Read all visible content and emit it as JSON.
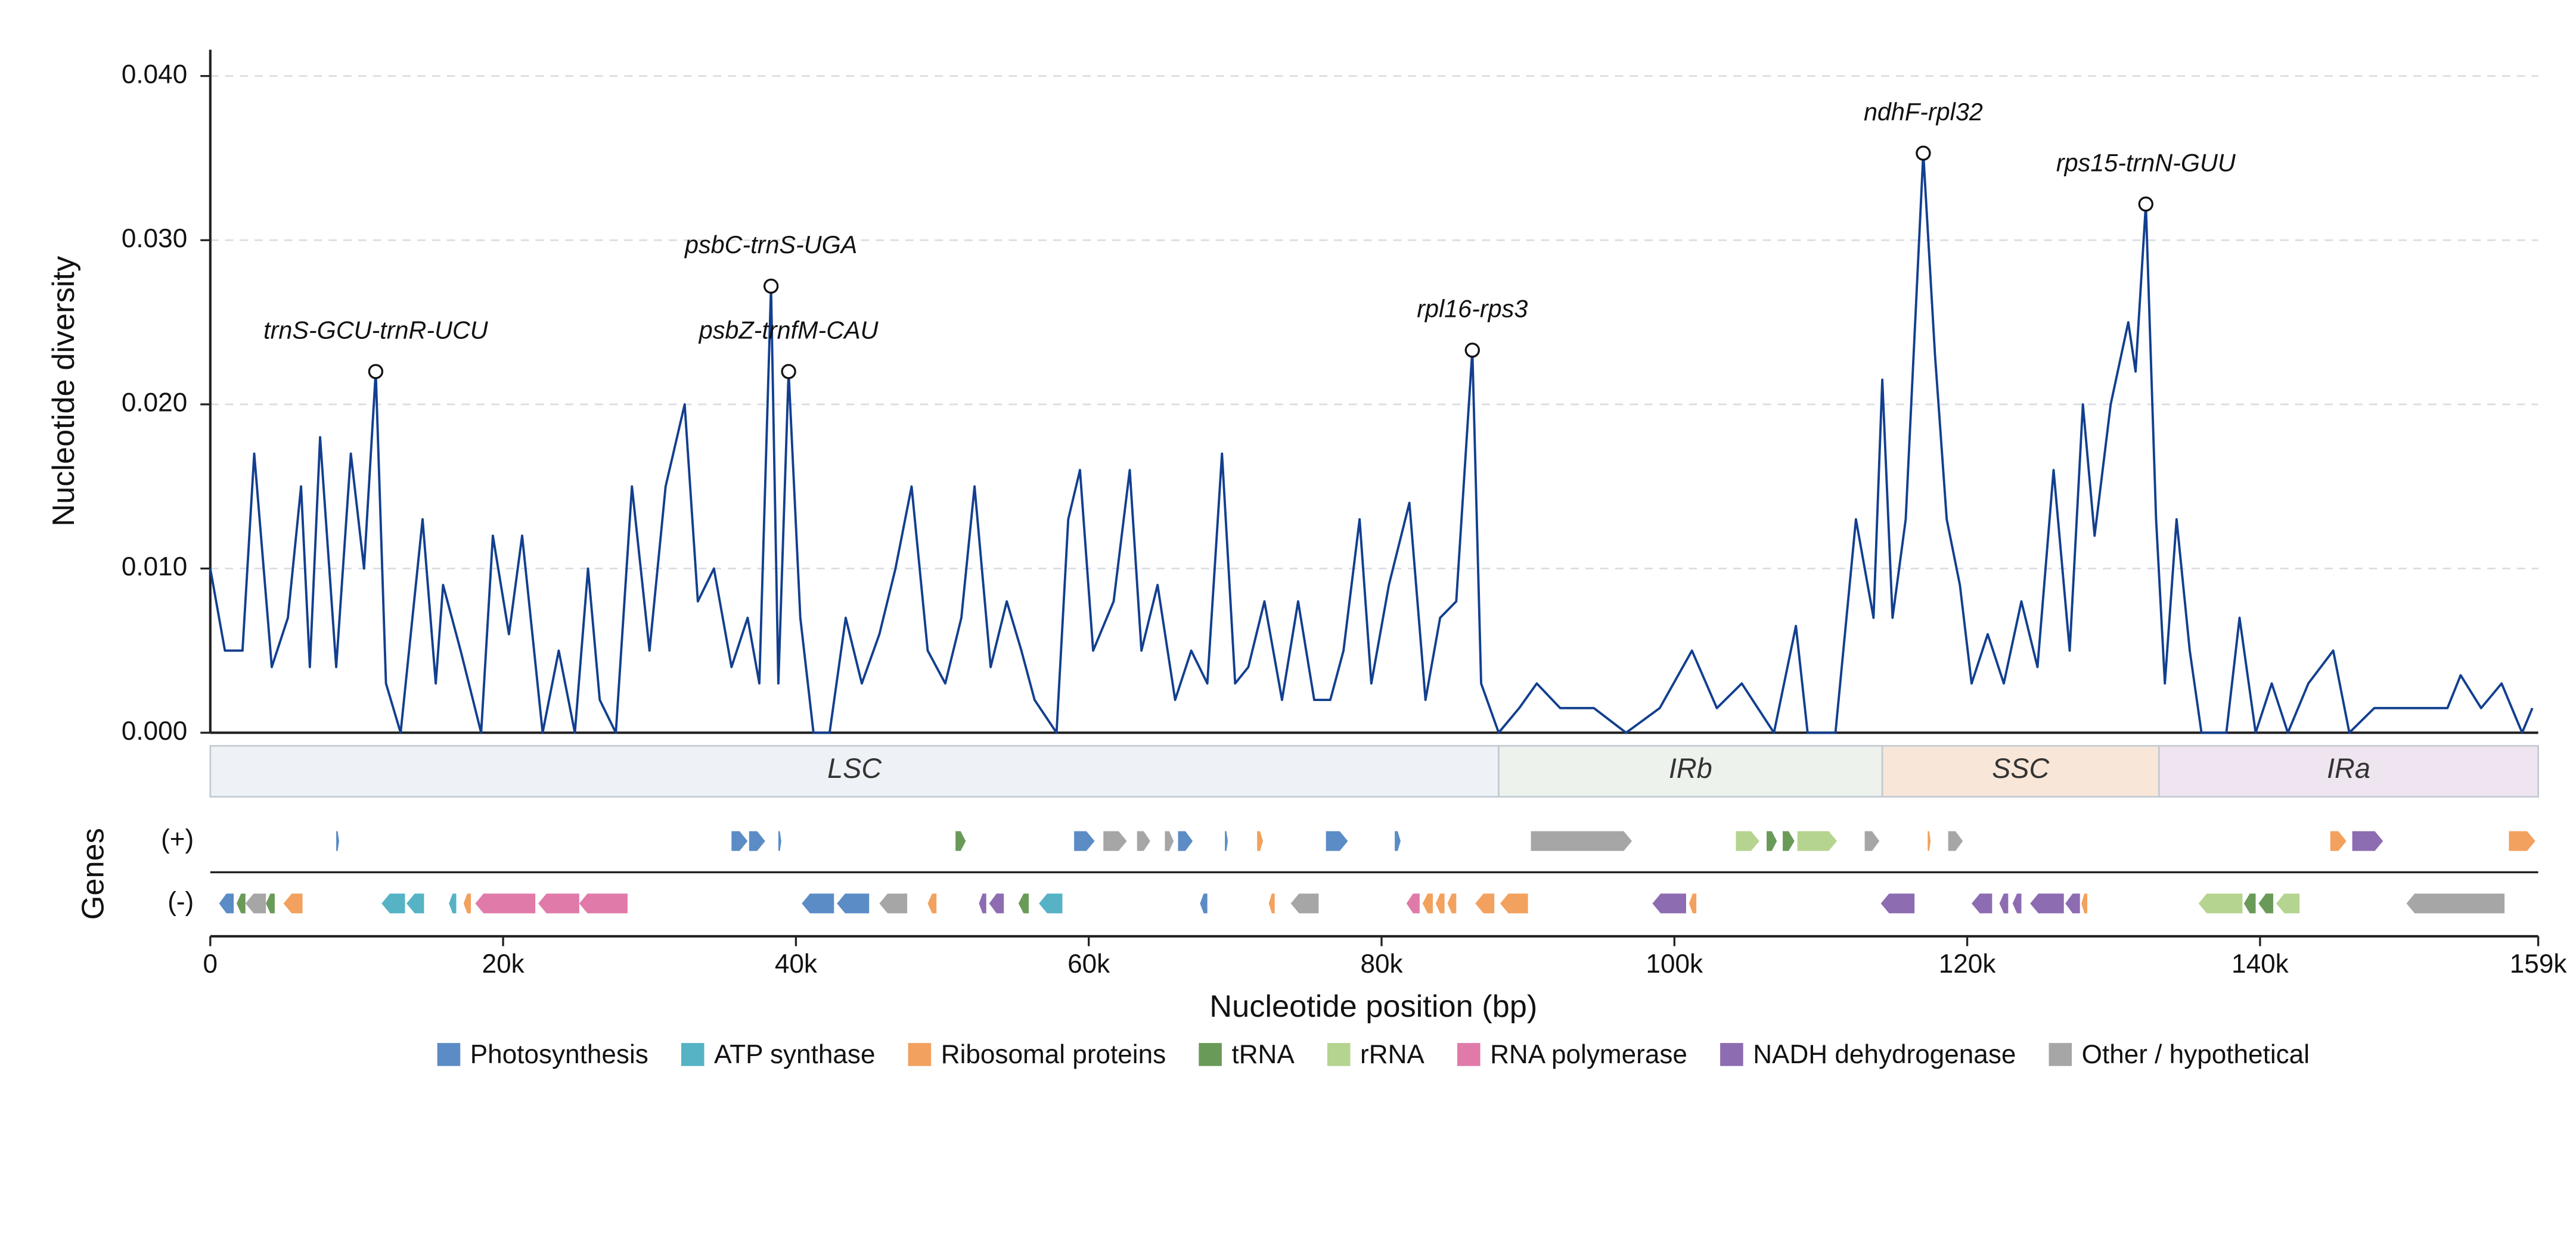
{
  "chart_data": {
    "type": "line",
    "ylabel": "Nucleotide diversity",
    "xlabel": "Nucleotide position (bp)",
    "color": "#123f8f",
    "grid": true,
    "xlim": [
      0,
      159000
    ],
    "ylim": [
      0,
      0.0416
    ],
    "xticks": [
      0,
      {
        "value": 20000,
        "label": "20k"
      },
      {
        "value": 40000,
        "label": "40k"
      },
      {
        "value": 60000,
        "label": "60k"
      },
      {
        "value": 80000,
        "label": "80k"
      },
      {
        "value": 100000,
        "label": "100k"
      },
      {
        "value": 120000,
        "label": "120k"
      },
      {
        "value": 140000,
        "label": "140k"
      },
      {
        "value": 159000,
        "label": "159k"
      }
    ],
    "yticks": [
      {
        "value": 0,
        "label": "0.000"
      },
      {
        "value": 0.01,
        "label": "0.010"
      },
      {
        "value": 0.02,
        "label": "0.020"
      },
      {
        "value": 0.03,
        "label": "0.030"
      },
      {
        "value": 0.04,
        "label": "0.040"
      }
    ],
    "x": [
      0,
      1000,
      2200,
      3000,
      4200,
      5300,
      6200,
      6800,
      7500,
      8600,
      9600,
      10500,
      11300,
      12000,
      13000,
      14500,
      15400,
      15900,
      17100,
      18500,
      19300,
      20400,
      21300,
      22700,
      23800,
      24900,
      25800,
      26600,
      27700,
      28800,
      30000,
      31100,
      32400,
      33300,
      34400,
      35600,
      36700,
      37500,
      38300,
      38800,
      39500,
      40300,
      41200,
      42300,
      43400,
      44500,
      45700,
      46800,
      47900,
      49000,
      50200,
      51300,
      52200,
      53300,
      54400,
      55400,
      56300,
      57800,
      58600,
      59400,
      60300,
      61700,
      62800,
      63600,
      64700,
      65900,
      67000,
      68100,
      69100,
      70000,
      70900,
      72000,
      73200,
      74300,
      75400,
      76500,
      77400,
      78500,
      79300,
      80500,
      81900,
      83000,
      84000,
      85100,
      86200,
      86800,
      88000,
      89400,
      90600,
      92200,
      94500,
      96700,
      99000,
      101200,
      102900,
      104600,
      106800,
      108300,
      109100,
      111000,
      112400,
      113600,
      114200,
      114900,
      115800,
      117000,
      117800,
      118600,
      119500,
      120300,
      121400,
      122500,
      123700,
      124800,
      125900,
      127000,
      127900,
      128700,
      129800,
      131000,
      131500,
      132200,
      132900,
      133500,
      134300,
      135200,
      136000,
      137700,
      138600,
      139700,
      140800,
      141900,
      143300,
      145000,
      146100,
      147800,
      149500,
      151100,
      152800,
      153700,
      155100,
      156500,
      157900,
      158600
    ],
    "values": [
      0.01,
      0.005,
      0.005,
      0.017,
      0.004,
      0.007,
      0.015,
      0.004,
      0.018,
      0.004,
      0.017,
      0.01,
      0.022,
      0.003,
      0.0,
      0.013,
      0.003,
      0.009,
      0.005,
      0.0,
      0.012,
      0.006,
      0.012,
      0.0,
      0.005,
      0.0,
      0.01,
      0.002,
      0.0,
      0.015,
      0.005,
      0.015,
      0.02,
      0.008,
      0.01,
      0.004,
      0.007,
      0.003,
      0.0272,
      0.003,
      0.022,
      0.007,
      0.0,
      0.0,
      0.007,
      0.003,
      0.006,
      0.01,
      0.015,
      0.005,
      0.003,
      0.007,
      0.015,
      0.004,
      0.008,
      0.005,
      0.002,
      0.0,
      0.013,
      0.016,
      0.005,
      0.008,
      0.016,
      0.005,
      0.009,
      0.002,
      0.005,
      0.003,
      0.017,
      0.003,
      0.004,
      0.008,
      0.002,
      0.008,
      0.002,
      0.002,
      0.005,
      0.013,
      0.003,
      0.009,
      0.014,
      0.002,
      0.007,
      0.008,
      0.0233,
      0.003,
      0.0,
      0.0015,
      0.003,
      0.0015,
      0.0015,
      0.0,
      0.0015,
      0.005,
      0.0015,
      0.003,
      0.0,
      0.0065,
      0.0,
      0.0,
      0.013,
      0.007,
      0.0215,
      0.007,
      0.013,
      0.0353,
      0.023,
      0.013,
      0.009,
      0.003,
      0.006,
      0.003,
      0.008,
      0.004,
      0.016,
      0.005,
      0.02,
      0.012,
      0.02,
      0.025,
      0.022,
      0.0322,
      0.013,
      0.003,
      0.013,
      0.005,
      0.0,
      0.0,
      0.007,
      0.0,
      0.003,
      0.0,
      0.003,
      0.005,
      0.0,
      0.0015,
      0.0015,
      0.0015,
      0.0015,
      0.0035,
      0.0015,
      0.003,
      0.0,
      0.0015
    ],
    "annotations": [
      {
        "text": "trnS-GCU-trnR-UCU",
        "x": 11300,
        "y": 0.022
      },
      {
        "text": "psbC-trnS-UGA",
        "x": 38300,
        "y": 0.0272
      },
      {
        "text": "psbZ-trnfM-CAU",
        "x": 39500,
        "y": 0.022
      },
      {
        "text": "rpl16-rps3",
        "x": 86200,
        "y": 0.0233
      },
      {
        "text": "ndhF-rpl32",
        "x": 117000,
        "y": 0.0353
      },
      {
        "text": "rps15-trnN-GUU",
        "x": 132200,
        "y": 0.0322
      }
    ],
    "regions": [
      {
        "name": "LSC",
        "start": 0,
        "end": 88000,
        "color": "#eef2f6"
      },
      {
        "name": "IRb",
        "start": 88000,
        "end": 114200,
        "color": "#edf3ec"
      },
      {
        "name": "SSC",
        "start": 114200,
        "end": 133100,
        "color": "#f8e7d9"
      },
      {
        "name": "IRa",
        "start": 133100,
        "end": 159000,
        "color": "#efe5f0"
      }
    ],
    "gene_track": {
      "label": "Genes",
      "strands": [
        "(+)",
        "(-)"
      ]
    },
    "legend": [
      {
        "name": "Photosynthesis",
        "color": "#5b8cc6"
      },
      {
        "name": "ATP synthase",
        "color": "#55b3c5"
      },
      {
        "name": "Ribosomal proteins",
        "color": "#f2a15e"
      },
      {
        "name": "tRNA",
        "color": "#6a9a58"
      },
      {
        "name": "rRNA",
        "color": "#b5d48f"
      },
      {
        "name": "RNA polymerase",
        "color": "#e07aa9"
      },
      {
        "name": "NADH dehydrogenase",
        "color": "#8d6cb2"
      },
      {
        "name": "Other / hypothetical",
        "color": "#a6a6a6"
      }
    ],
    "genes": [
      {
        "start": 8600,
        "end": 8800,
        "strand": "(+)",
        "category": "Photosynthesis"
      },
      {
        "start": 35600,
        "end": 36700,
        "strand": "(+)",
        "category": "Photosynthesis"
      },
      {
        "start": 36800,
        "end": 37900,
        "strand": "(+)",
        "category": "Photosynthesis"
      },
      {
        "start": 38800,
        "end": 39000,
        "strand": "(+)",
        "category": "Photosynthesis"
      },
      {
        "start": 50900,
        "end": 51600,
        "strand": "(+)",
        "category": "tRNA"
      },
      {
        "start": 59000,
        "end": 60400,
        "strand": "(+)",
        "category": "Photosynthesis"
      },
      {
        "start": 61000,
        "end": 62600,
        "strand": "(+)",
        "category": "Other / hypothetical"
      },
      {
        "start": 63300,
        "end": 64200,
        "strand": "(+)",
        "category": "Other / hypothetical"
      },
      {
        "start": 65200,
        "end": 65800,
        "strand": "(+)",
        "category": "Other / hypothetical"
      },
      {
        "start": 66100,
        "end": 67100,
        "strand": "(+)",
        "category": "Photosynthesis"
      },
      {
        "start": 69300,
        "end": 69500,
        "strand": "(+)",
        "category": "Photosynthesis"
      },
      {
        "start": 71500,
        "end": 71900,
        "strand": "(+)",
        "category": "Ribosomal proteins"
      },
      {
        "start": 76200,
        "end": 77700,
        "strand": "(+)",
        "category": "Photosynthesis"
      },
      {
        "start": 80900,
        "end": 81300,
        "strand": "(+)",
        "category": "Photosynthesis"
      },
      {
        "start": 90200,
        "end": 97100,
        "strand": "(+)",
        "category": "Other / hypothetical"
      },
      {
        "start": 104200,
        "end": 105800,
        "strand": "(+)",
        "category": "rRNA"
      },
      {
        "start": 106300,
        "end": 107000,
        "strand": "(+)",
        "category": "tRNA"
      },
      {
        "start": 107400,
        "end": 108200,
        "strand": "(+)",
        "category": "tRNA"
      },
      {
        "start": 108400,
        "end": 111100,
        "strand": "(+)",
        "category": "rRNA"
      },
      {
        "start": 113000,
        "end": 114000,
        "strand": "(+)",
        "category": "Other / hypothetical"
      },
      {
        "start": 117300,
        "end": 117500,
        "strand": "(+)",
        "category": "Ribosomal proteins"
      },
      {
        "start": 118700,
        "end": 119700,
        "strand": "(+)",
        "category": "Other / hypothetical"
      },
      {
        "start": 144800,
        "end": 145900,
        "strand": "(+)",
        "category": "Ribosomal proteins"
      },
      {
        "start": 146300,
        "end": 148400,
        "strand": "(+)",
        "category": "NADH dehydrogenase"
      },
      {
        "start": 157000,
        "end": 158800,
        "strand": "(+)",
        "category": "Ribosomal proteins"
      },
      {
        "start": 600,
        "end": 1600,
        "strand": "(-)",
        "category": "Photosynthesis"
      },
      {
        "start": 1800,
        "end": 2400,
        "strand": "(-)",
        "category": "tRNA"
      },
      {
        "start": 2400,
        "end": 3800,
        "strand": "(-)",
        "category": "Other / hypothetical"
      },
      {
        "start": 3800,
        "end": 4400,
        "strand": "(-)",
        "category": "tRNA"
      },
      {
        "start": 5000,
        "end": 6300,
        "strand": "(-)",
        "category": "Ribosomal proteins"
      },
      {
        "start": 11700,
        "end": 13300,
        "strand": "(-)",
        "category": "ATP synthase"
      },
      {
        "start": 13400,
        "end": 14600,
        "strand": "(-)",
        "category": "ATP synthase"
      },
      {
        "start": 16300,
        "end": 16800,
        "strand": "(-)",
        "category": "ATP synthase"
      },
      {
        "start": 17300,
        "end": 17800,
        "strand": "(-)",
        "category": "Ribosomal proteins"
      },
      {
        "start": 18100,
        "end": 22200,
        "strand": "(-)",
        "category": "RNA polymerase"
      },
      {
        "start": 22400,
        "end": 25200,
        "strand": "(-)",
        "category": "RNA polymerase"
      },
      {
        "start": 25200,
        "end": 28500,
        "strand": "(-)",
        "category": "RNA polymerase"
      },
      {
        "start": 40400,
        "end": 42600,
        "strand": "(-)",
        "category": "Photosynthesis"
      },
      {
        "start": 42800,
        "end": 45000,
        "strand": "(-)",
        "category": "Photosynthesis"
      },
      {
        "start": 45700,
        "end": 47600,
        "strand": "(-)",
        "category": "Other / hypothetical"
      },
      {
        "start": 49000,
        "end": 49600,
        "strand": "(-)",
        "category": "Ribosomal proteins"
      },
      {
        "start": 52500,
        "end": 53000,
        "strand": "(-)",
        "category": "NADH dehydrogenase"
      },
      {
        "start": 53200,
        "end": 54200,
        "strand": "(-)",
        "category": "NADH dehydrogenase"
      },
      {
        "start": 55200,
        "end": 55900,
        "strand": "(-)",
        "category": "tRNA"
      },
      {
        "start": 56600,
        "end": 58200,
        "strand": "(-)",
        "category": "ATP synthase"
      },
      {
        "start": 67600,
        "end": 68100,
        "strand": "(-)",
        "category": "Photosynthesis"
      },
      {
        "start": 72300,
        "end": 72700,
        "strand": "(-)",
        "category": "Ribosomal proteins"
      },
      {
        "start": 73800,
        "end": 75700,
        "strand": "(-)",
        "category": "Other / hypothetical"
      },
      {
        "start": 81700,
        "end": 82600,
        "strand": "(-)",
        "category": "RNA polymerase"
      },
      {
        "start": 82800,
        "end": 83500,
        "strand": "(-)",
        "category": "Ribosomal proteins"
      },
      {
        "start": 83700,
        "end": 84300,
        "strand": "(-)",
        "category": "Ribosomal proteins"
      },
      {
        "start": 84500,
        "end": 85100,
        "strand": "(-)",
        "category": "Ribosomal proteins"
      },
      {
        "start": 86400,
        "end": 87700,
        "strand": "(-)",
        "category": "Ribosomal proteins"
      },
      {
        "start": 88100,
        "end": 90000,
        "strand": "(-)",
        "category": "Ribosomal proteins"
      },
      {
        "start": 98500,
        "end": 100800,
        "strand": "(-)",
        "category": "NADH dehydrogenase"
      },
      {
        "start": 101000,
        "end": 101500,
        "strand": "(-)",
        "category": "Ribosomal proteins"
      },
      {
        "start": 114100,
        "end": 116400,
        "strand": "(-)",
        "category": "NADH dehydrogenase"
      },
      {
        "start": 120300,
        "end": 121700,
        "strand": "(-)",
        "category": "NADH dehydrogenase"
      },
      {
        "start": 122200,
        "end": 122800,
        "strand": "(-)",
        "category": "NADH dehydrogenase"
      },
      {
        "start": 123100,
        "end": 123700,
        "strand": "(-)",
        "category": "NADH dehydrogenase"
      },
      {
        "start": 124300,
        "end": 126600,
        "strand": "(-)",
        "category": "NADH dehydrogenase"
      },
      {
        "start": 126700,
        "end": 127700,
        "strand": "(-)",
        "category": "NADH dehydrogenase"
      },
      {
        "start": 127800,
        "end": 128200,
        "strand": "(-)",
        "category": "Ribosomal proteins"
      },
      {
        "start": 135800,
        "end": 138800,
        "strand": "(-)",
        "category": "rRNA"
      },
      {
        "start": 138900,
        "end": 139700,
        "strand": "(-)",
        "category": "tRNA"
      },
      {
        "start": 139900,
        "end": 140900,
        "strand": "(-)",
        "category": "tRNA"
      },
      {
        "start": 141100,
        "end": 142700,
        "strand": "(-)",
        "category": "rRNA"
      },
      {
        "start": 150000,
        "end": 156700,
        "strand": "(-)",
        "category": "Other / hypothetical"
      }
    ]
  }
}
